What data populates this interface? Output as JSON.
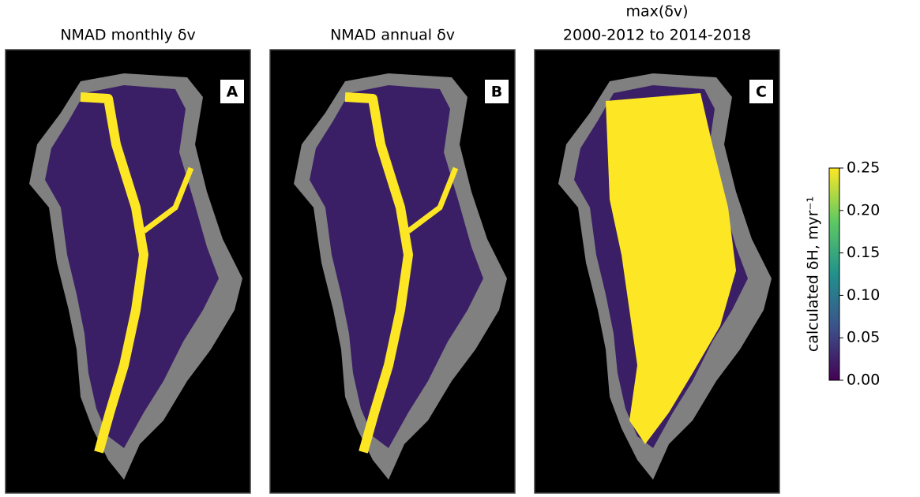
{
  "chart_data": {
    "type": "map",
    "panels": [
      {
        "title": [
          "NMAD monthly δv"
        ],
        "label": "A"
      },
      {
        "title": [
          "NMAD annual δv"
        ],
        "label": "B"
      },
      {
        "title": [
          "max(δv)",
          "2000-2012 to 2014-2018"
        ],
        "label": "C"
      }
    ],
    "colorbar": {
      "label": "calculated δH, myr⁻¹",
      "colors": [
        "#440154",
        "#3b528b",
        "#21918c",
        "#5ec962",
        "#fde725"
      ],
      "ylim": [
        0,
        0.25
      ],
      "yticks": [
        {
          "value": 0,
          "label": "0.00"
        },
        {
          "value": 0.05,
          "label": "0.05"
        },
        {
          "value": 0.1,
          "label": "0.10"
        },
        {
          "value": 0.15,
          "label": "0.15"
        },
        {
          "value": 0.2,
          "label": "0.20"
        },
        {
          "value": 0.25,
          "label": "0.25"
        }
      ]
    }
  }
}
